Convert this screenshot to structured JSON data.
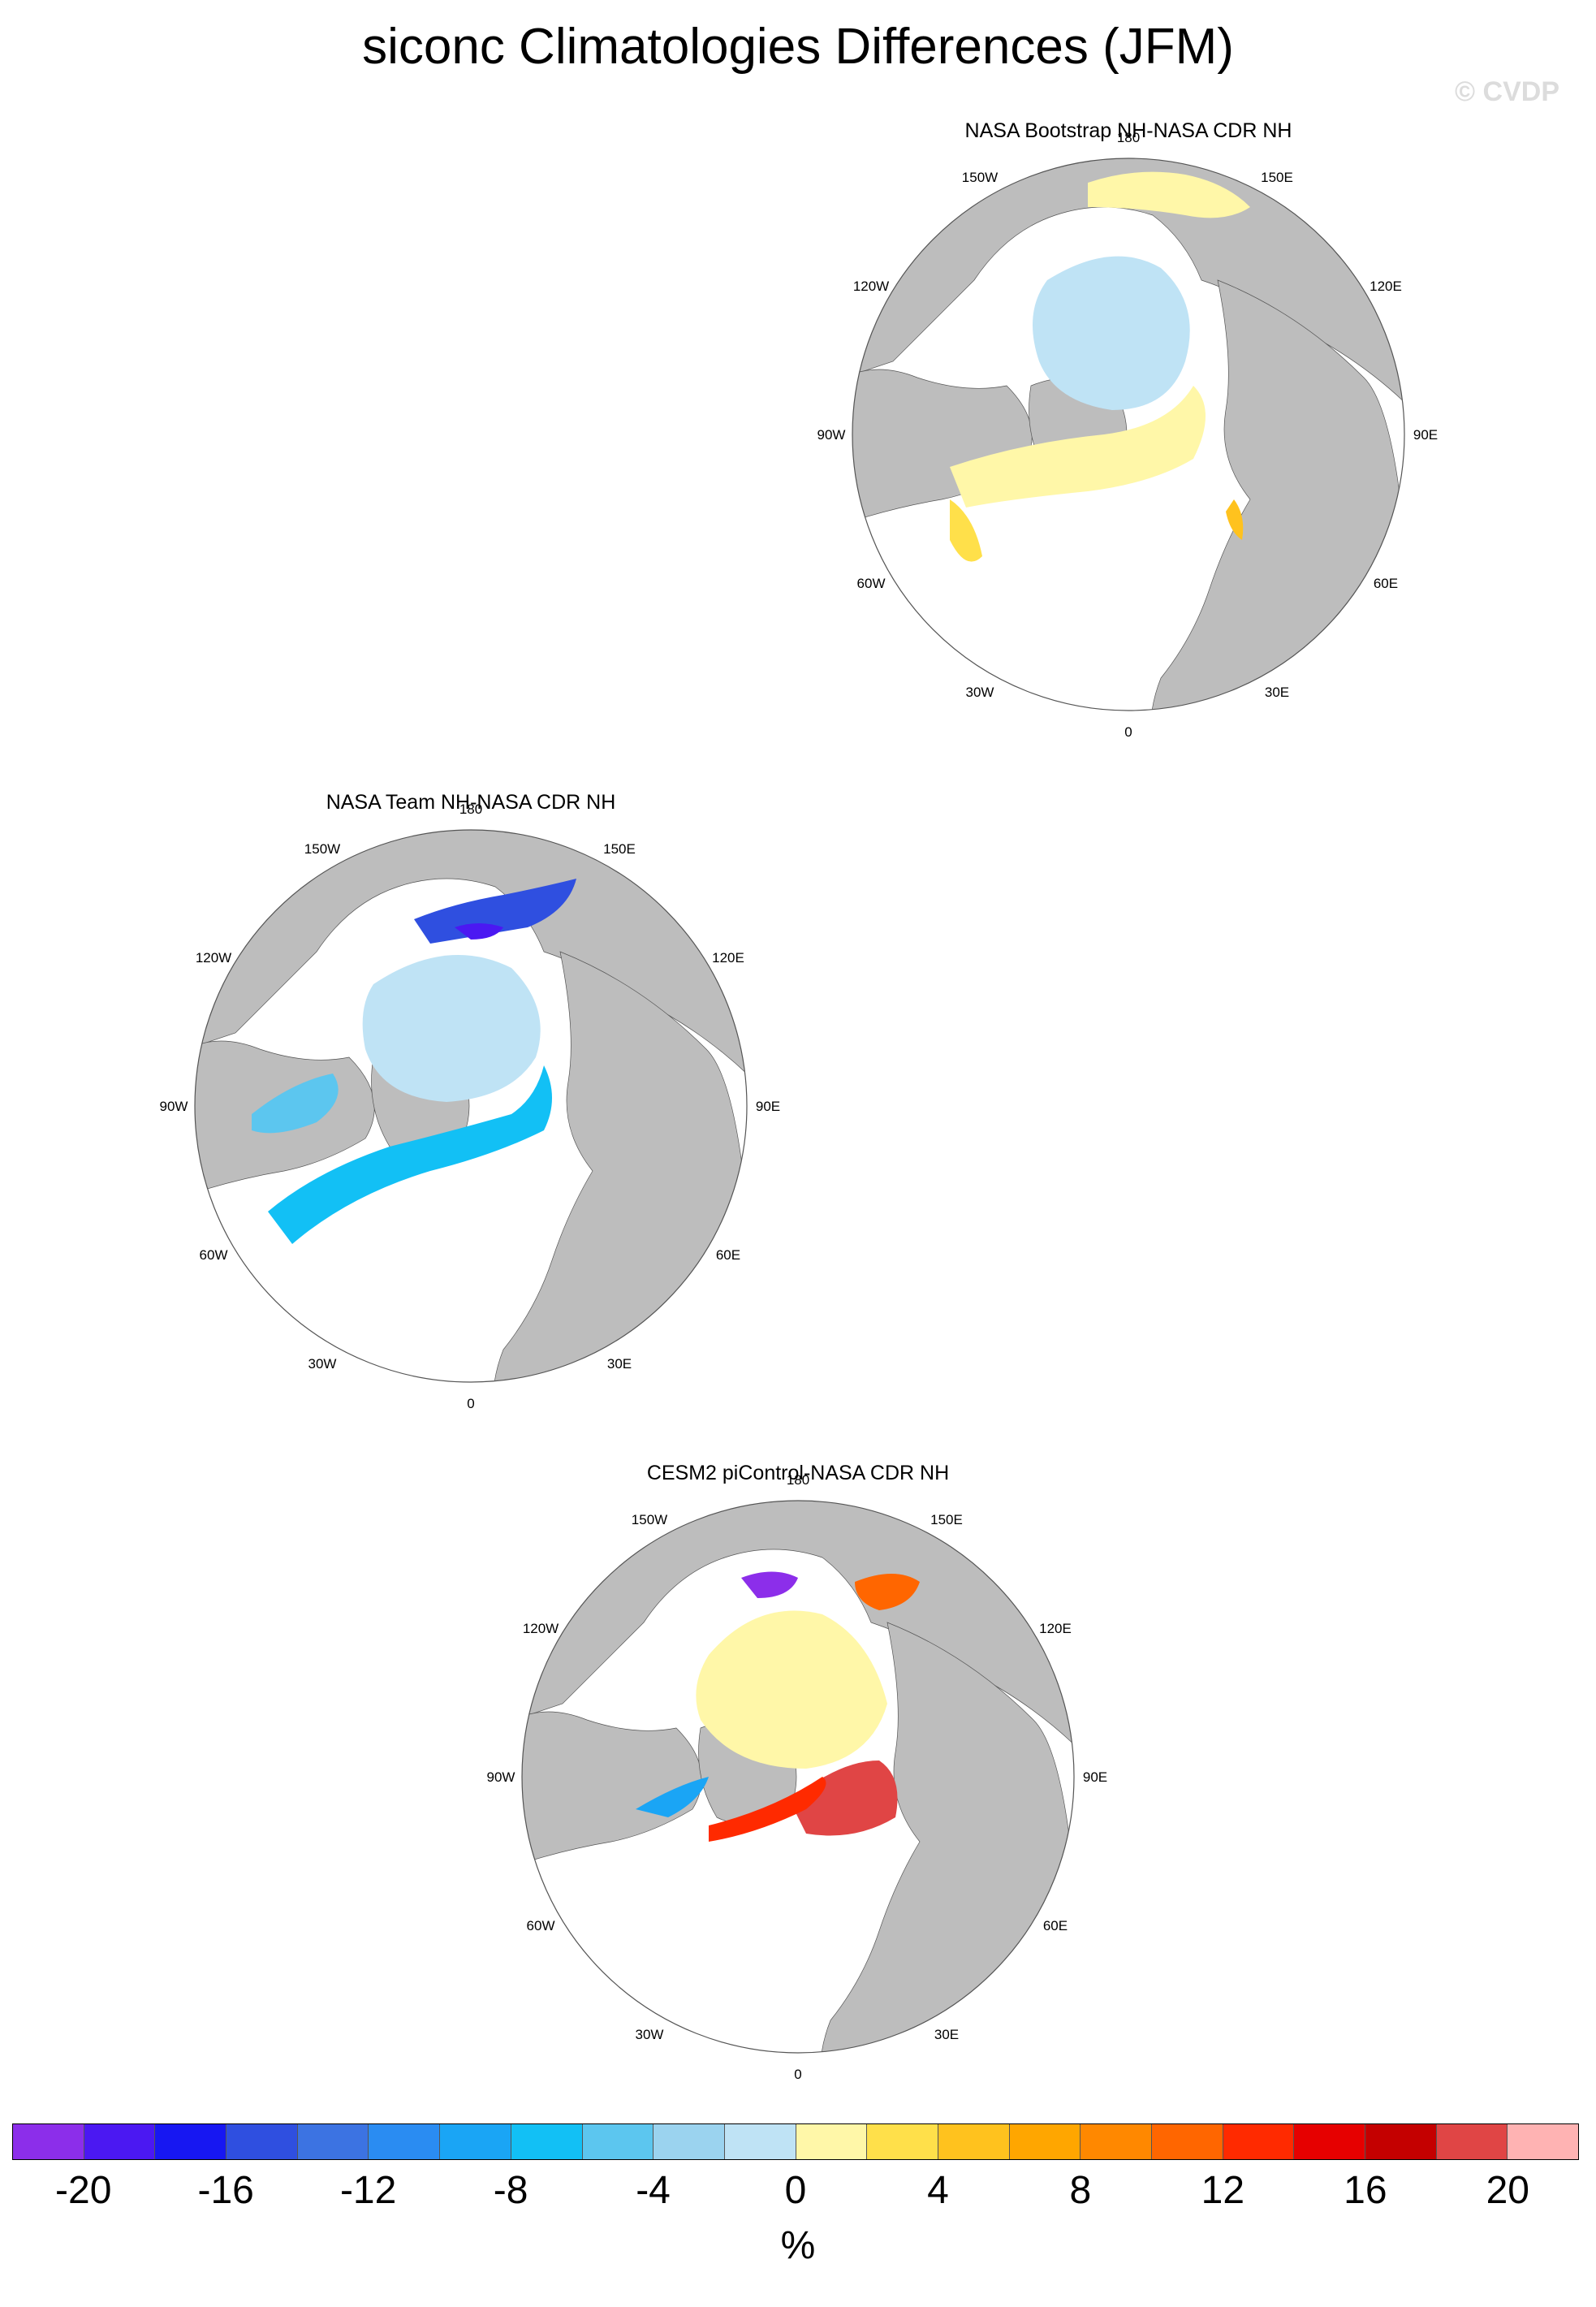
{
  "figure": {
    "title": "siconc Climatologies Differences (JFM)",
    "watermark": "© CVDP"
  },
  "chart_data": {
    "type": "map",
    "projection": "north-polar-stereographic",
    "land_color": "#bdbdbd",
    "longitude_labels": [
      "180",
      "150E",
      "120E",
      "90E",
      "60E",
      "30E",
      "0",
      "30W",
      "60W",
      "90W",
      "120W",
      "150W"
    ],
    "panels": [
      {
        "title": "NASA Bootstrap NH-NASA CDR NH",
        "dominant_sign": "positive"
      },
      {
        "title": "NASA Team NH-NASA CDR NH",
        "dominant_sign": "negative"
      },
      {
        "title": "CESM2 piControl-NASA CDR NH",
        "dominant_sign": "mixed"
      }
    ],
    "colorbar": {
      "unit": "%",
      "tick_labels": [
        "-20",
        "-16",
        "-12",
        "-8",
        "-4",
        "0",
        "4",
        "8",
        "12",
        "16",
        "20"
      ],
      "colors": [
        "#8c2eea",
        "#4b18f2",
        "#1717f2",
        "#2f4fe0",
        "#3c73e2",
        "#2a8cf2",
        "#1aa5f5",
        "#12c0f5",
        "#5cc6ef",
        "#9bd3ef",
        "#bfe3f5",
        "#fff7a8",
        "#ffe04a",
        "#ffc21e",
        "#ffa600",
        "#ff8800",
        "#ff6600",
        "#ff2a00",
        "#e60000",
        "#c40000",
        "#e04545",
        "#ffb3b3"
      ]
    }
  }
}
